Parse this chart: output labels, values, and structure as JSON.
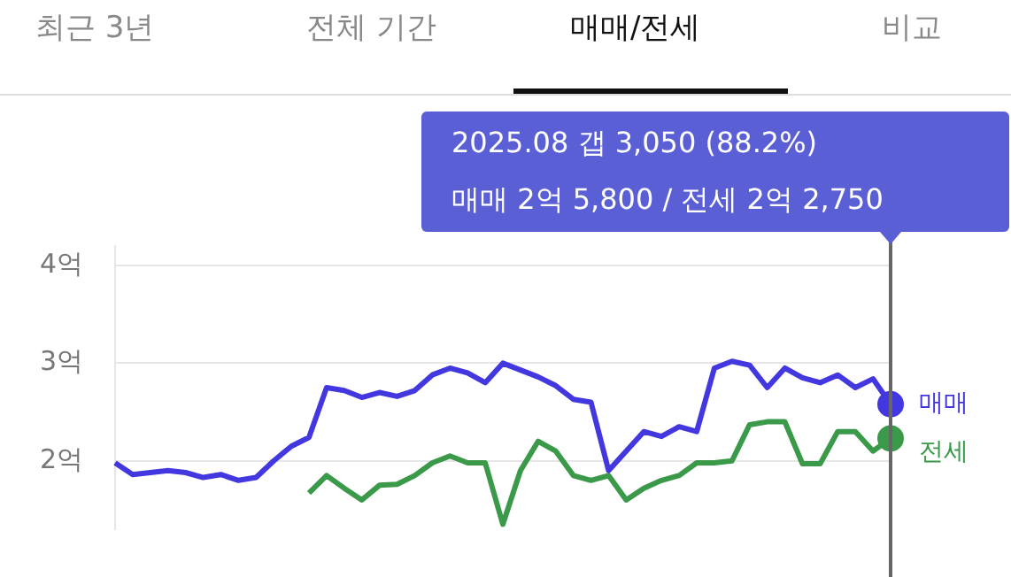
{
  "chart_data": {
    "type": "line",
    "categories": [
      null,
      null,
      null,
      null,
      null,
      null,
      null,
      null,
      null,
      null,
      null,
      null,
      null,
      null,
      null,
      null,
      null,
      null,
      null,
      null,
      null,
      null,
      null,
      null,
      null,
      null,
      null,
      null,
      null,
      null,
      null,
      null,
      null,
      null,
      null,
      null,
      null,
      null,
      null,
      null,
      null,
      null,
      null,
      null,
      null
    ],
    "series": [
      {
        "name": "매매",
        "color": "#4338e0",
        "values": [
          1.98,
          1.86,
          1.88,
          1.9,
          1.88,
          1.83,
          1.86,
          1.8,
          1.83,
          2.0,
          2.15,
          2.24,
          2.75,
          2.72,
          2.65,
          2.7,
          2.66,
          2.72,
          2.88,
          2.95,
          2.9,
          2.8,
          3.0,
          2.93,
          2.86,
          2.77,
          2.63,
          2.6,
          1.9,
          2.1,
          2.3,
          2.25,
          2.35,
          2.3,
          2.95,
          3.02,
          2.98,
          2.75,
          2.95,
          2.85,
          2.8,
          2.88,
          2.75,
          2.84,
          2.58
        ]
      },
      {
        "name": "전세",
        "color": "#3a9a4a",
        "values": [
          null,
          null,
          null,
          null,
          null,
          null,
          null,
          null,
          null,
          null,
          null,
          1.67,
          1.85,
          1.72,
          1.6,
          1.75,
          1.76,
          1.85,
          1.98,
          2.05,
          1.98,
          1.98,
          1.35,
          1.9,
          2.2,
          2.1,
          1.85,
          1.8,
          1.85,
          1.6,
          1.72,
          1.8,
          1.85,
          1.98,
          1.98,
          2.0,
          2.37,
          2.4,
          2.4,
          1.97,
          1.97,
          2.3,
          2.3,
          2.1,
          2.23
        ]
      }
    ],
    "ylim": [
      1.3,
      4.2
    ],
    "yticks": [
      {
        "value": 2,
        "label": "2억"
      },
      {
        "value": 3,
        "label": "3억"
      },
      {
        "value": 4,
        "label": "4억"
      }
    ],
    "grid": "y",
    "legend": false,
    "tick_labels": "y",
    "line_style": "solid",
    "annotations": [
      "최근 3년",
      "전체 기간",
      "매매/전세",
      "비교",
      "2025.08  갭 3,050 (88.2%)",
      "매매 2억 5,800 / 전세 2억 2,750"
    ]
  }
}
